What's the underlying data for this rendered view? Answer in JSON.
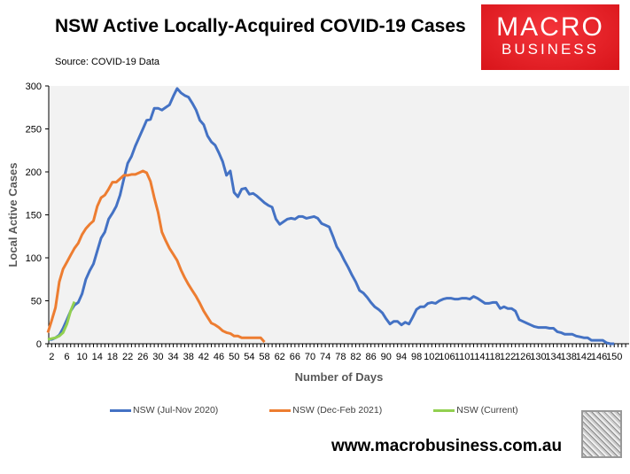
{
  "header": {
    "title": "NSW Active Locally-Acquired COVID-19 Cases",
    "source": "Source: COVID-19 Data",
    "logo_line1": "MACRO",
    "logo_line2": "BUSINESS",
    "brand_color": "#e3181f"
  },
  "footer": {
    "url": "www.macrobusiness.com.au"
  },
  "chart_data": {
    "type": "line",
    "xlabel": "Number of Days",
    "ylabel": "Local Active Cases",
    "ylim": [
      0,
      300
    ],
    "yticks": [
      0,
      50,
      100,
      150,
      200,
      250,
      300
    ],
    "xticks": [
      2,
      6,
      10,
      14,
      18,
      22,
      26,
      30,
      34,
      38,
      42,
      46,
      50,
      54,
      58,
      62,
      66,
      70,
      74,
      78,
      82,
      86,
      90,
      94,
      98,
      102,
      106,
      110,
      114,
      118,
      122,
      126,
      130,
      134,
      138,
      142,
      146,
      150
    ],
    "grid": false,
    "legend": "bottom",
    "plot_background": "#f2f2f2",
    "series": [
      {
        "name": "NSW (Jul-Nov 2020)",
        "color": "#4472c4",
        "start_day": 1,
        "values": [
          5,
          5,
          7,
          10,
          18,
          28,
          38,
          45,
          48,
          58,
          75,
          85,
          93,
          108,
          123,
          130,
          145,
          152,
          160,
          173,
          192,
          210,
          218,
          230,
          240,
          250,
          260,
          261,
          274,
          274,
          272,
          275,
          278,
          288,
          297,
          292,
          289,
          287,
          280,
          272,
          260,
          255,
          242,
          235,
          231,
          222,
          212,
          196,
          201,
          176,
          171,
          180,
          181,
          174,
          175,
          172,
          168,
          164,
          161,
          159,
          145,
          139,
          142,
          145,
          146,
          145,
          148,
          148,
          146,
          147,
          148,
          146,
          140,
          138,
          136,
          125,
          113,
          106,
          97,
          89,
          80,
          72,
          62,
          59,
          54,
          48,
          43,
          40,
          36,
          29,
          23,
          26,
          26,
          22,
          25,
          23,
          31,
          40,
          43,
          43,
          47,
          48,
          47,
          50,
          52,
          53,
          53,
          52,
          52,
          53,
          53,
          52,
          55,
          53,
          50,
          47,
          47,
          48,
          48,
          41,
          43,
          41,
          41,
          38,
          28,
          26,
          24,
          22,
          20,
          19,
          19,
          19,
          18,
          18,
          14,
          13,
          11,
          11,
          11,
          9,
          8,
          7,
          7,
          4,
          4,
          4,
          4,
          1,
          0,
          0
        ]
      },
      {
        "name": "NSW (Dec-Feb 2021)",
        "color": "#ed7d31",
        "start_day": 1,
        "values": [
          13,
          27,
          42,
          72,
          87,
          95,
          103,
          111,
          117,
          127,
          134,
          139,
          143,
          160,
          170,
          173,
          180,
          188,
          188,
          192,
          196,
          196,
          197,
          197,
          199,
          201,
          199,
          189,
          170,
          153,
          130,
          120,
          111,
          104,
          97,
          86,
          77,
          69,
          62,
          55,
          47,
          38,
          31,
          24,
          22,
          19,
          15,
          13,
          12,
          9,
          9,
          7,
          7,
          7,
          7,
          7,
          7,
          2
        ]
      },
      {
        "name": "NSW (Current)",
        "color": "#92d050",
        "start_day": 1,
        "values": [
          5,
          6,
          7,
          9,
          13,
          23,
          38,
          49
        ]
      }
    ]
  }
}
